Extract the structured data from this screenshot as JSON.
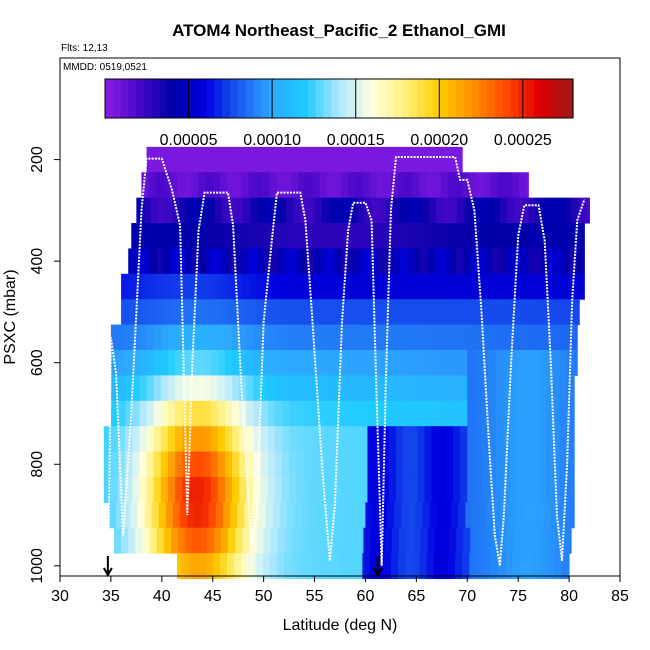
{
  "chart_data": {
    "type": "heatmap",
    "title": "ATOM4 Northeast_Pacific_2 Ethanol_GMI",
    "flights_label": "Flts: 12,13",
    "dates_label": "MMDD: 0519,0521",
    "xlabel": "Latitude (deg N)",
    "ylabel": "PSXC (mbar)",
    "xlim": [
      30,
      85
    ],
    "ylim": [
      1020,
      0
    ],
    "x_ticks": [
      30,
      35,
      40,
      45,
      50,
      55,
      60,
      65,
      70,
      75,
      80,
      85
    ],
    "y_ticks": [
      200,
      400,
      600,
      800,
      1000
    ],
    "colorbar": {
      "range": [
        0,
        0.00028
      ],
      "tick_values": [
        5e-05,
        0.0001,
        0.00015,
        0.0002,
        0.00025
      ],
      "tick_labels": [
        "0.00005",
        "0.00010",
        "0.00015",
        "0.00020",
        "0.00025"
      ],
      "colors": [
        "#8b1ee8",
        "#4a08c8",
        "#0000a8",
        "#0000e0",
        "#1a5cf0",
        "#2da8ff",
        "#1ecbff",
        "#b0e8ff",
        "#ffffe0",
        "#fff07a",
        "#ffcc00",
        "#ff9000",
        "#ff4800",
        "#dd0000",
        "#9c1a1a"
      ]
    },
    "flight_arrows": [
      34.7,
      61.2
    ],
    "pressure_bins": [
      {
        "p": 200,
        "ranges": [
          [
            38.5,
            69.5
          ]
        ]
      },
      {
        "p": 250,
        "ranges": [
          [
            38.0,
            76.0
          ]
        ]
      },
      {
        "p": 300,
        "ranges": [
          [
            37.5,
            82.0
          ]
        ]
      },
      {
        "p": 350,
        "ranges": [
          [
            37.0,
            81.5
          ]
        ]
      },
      {
        "p": 400,
        "ranges": [
          [
            36.7,
            81.5
          ]
        ]
      },
      {
        "p": 450,
        "ranges": [
          [
            36.0,
            81.5
          ]
        ]
      },
      {
        "p": 500,
        "ranges": [
          [
            36.0,
            81.0
          ]
        ]
      },
      {
        "p": 550,
        "ranges": [
          [
            35.0,
            80.8
          ]
        ]
      },
      {
        "p": 600,
        "ranges": [
          [
            35.0,
            80.8
          ]
        ]
      },
      {
        "p": 650,
        "ranges": [
          [
            35.0,
            80.5
          ]
        ]
      },
      {
        "p": 700,
        "ranges": [
          [
            35.0,
            80.5
          ]
        ]
      },
      {
        "p": 750,
        "ranges": [
          [
            34.3,
            80.5
          ]
        ]
      },
      {
        "p": 800,
        "ranges": [
          [
            34.3,
            80.5
          ]
        ]
      },
      {
        "p": 850,
        "ranges": [
          [
            34.3,
            80.5
          ]
        ]
      },
      {
        "p": 900,
        "ranges": [
          [
            34.8,
            80.5
          ]
        ]
      },
      {
        "p": 950,
        "ranges": [
          [
            35.3,
            80.2
          ]
        ]
      },
      {
        "p": 1000,
        "ranges": [
          [
            41.5,
            80.0
          ]
        ]
      }
    ],
    "profile_path": [
      [
        34.8,
        930
      ],
      [
        35.0,
        550
      ],
      [
        35.5,
        620
      ],
      [
        36.2,
        940
      ],
      [
        37.0,
        700
      ],
      [
        38.0,
        300
      ],
      [
        38.5,
        198
      ],
      [
        40.0,
        198
      ],
      [
        41.0,
        260
      ],
      [
        41.8,
        330
      ],
      [
        42.5,
        900
      ],
      [
        43.0,
        600
      ],
      [
        43.6,
        340
      ],
      [
        44.2,
        265
      ],
      [
        46.5,
        265
      ],
      [
        47.0,
        330
      ],
      [
        47.8,
        640
      ],
      [
        48.8,
        960
      ],
      [
        49.3,
        900
      ],
      [
        50.0,
        520
      ],
      [
        50.8,
        360
      ],
      [
        51.3,
        265
      ],
      [
        53.6,
        265
      ],
      [
        54.1,
        320
      ],
      [
        54.8,
        520
      ],
      [
        55.8,
        820
      ],
      [
        56.5,
        990
      ],
      [
        57.0,
        880
      ],
      [
        57.7,
        520
      ],
      [
        58.3,
        340
      ],
      [
        58.8,
        285
      ],
      [
        60.0,
        285
      ],
      [
        60.6,
        320
      ],
      [
        61.0,
        600
      ],
      [
        61.6,
        1000
      ],
      [
        62.0,
        640
      ],
      [
        62.5,
        300
      ],
      [
        63.0,
        195
      ],
      [
        68.8,
        195
      ],
      [
        69.3,
        240
      ],
      [
        70.0,
        240
      ],
      [
        70.7,
        300
      ],
      [
        71.4,
        500
      ],
      [
        72.1,
        750
      ],
      [
        72.7,
        940
      ],
      [
        73.2,
        1000
      ],
      [
        73.6,
        900
      ],
      [
        74.3,
        600
      ],
      [
        75.0,
        350
      ],
      [
        75.6,
        290
      ],
      [
        77.0,
        290
      ],
      [
        77.6,
        360
      ],
      [
        78.2,
        600
      ],
      [
        78.8,
        900
      ],
      [
        79.3,
        990
      ],
      [
        79.8,
        800
      ],
      [
        80.3,
        480
      ],
      [
        80.8,
        320
      ],
      [
        81.5,
        278
      ]
    ]
  }
}
